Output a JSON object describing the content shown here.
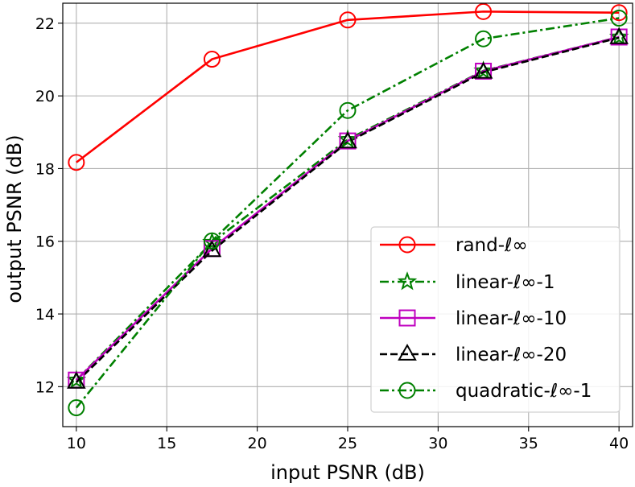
{
  "chart_data": {
    "type": "line",
    "xlabel": "input PSNR (dB)",
    "ylabel": "output PSNR (dB)",
    "xlim": [
      9.25,
      40.75
    ],
    "ylim": [
      10.9,
      22.55
    ],
    "x_ticks": [
      10,
      15,
      20,
      25,
      30,
      35,
      40
    ],
    "y_ticks": [
      12,
      14,
      16,
      18,
      20,
      22
    ],
    "grid": true,
    "legend_placement": "lower-right",
    "x": [
      10,
      17.5,
      25,
      32.5,
      40
    ],
    "series": [
      {
        "name": "rand-ℓ∞",
        "values": [
          18.17,
          21.01,
          22.09,
          22.32,
          22.29
        ],
        "color": "#ff0000",
        "linestyle": "solid",
        "marker": "circle",
        "marker_fill": "none"
      },
      {
        "name": "linear-ℓ∞-1",
        "values": [
          12.18,
          15.97,
          18.8,
          20.69,
          21.62
        ],
        "color": "#008000",
        "linestyle": "dashdot",
        "marker": "star",
        "marker_fill": "none"
      },
      {
        "name": "linear-ℓ∞-10",
        "values": [
          12.18,
          15.8,
          18.76,
          20.68,
          21.62
        ],
        "color": "#bf00bf",
        "linestyle": "solid",
        "marker": "square",
        "marker_fill": "none"
      },
      {
        "name": "linear-ℓ∞-20",
        "values": [
          12.12,
          15.74,
          18.73,
          20.65,
          21.6
        ],
        "color": "#000000",
        "linestyle": "dashed",
        "marker": "triangle",
        "marker_fill": "none"
      },
      {
        "name": "quadratic-ℓ∞-1",
        "values": [
          11.42,
          16.01,
          19.6,
          21.57,
          22.14
        ],
        "color": "#008000",
        "linestyle": "dashdot",
        "marker": "circle",
        "marker_fill": "none"
      }
    ]
  }
}
